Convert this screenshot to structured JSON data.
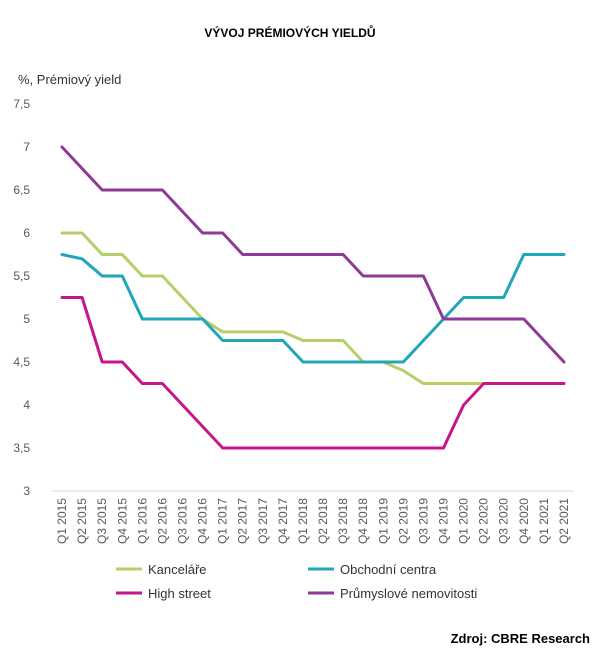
{
  "chart_data": {
    "type": "line",
    "title": "VÝVOJ PRÉMIOVÝCH YIELDŮ",
    "ylabel": "%, Prémiový yield",
    "ylim": [
      3,
      7.5
    ],
    "yticks": [
      "3",
      "3,5",
      "4",
      "4,5",
      "5",
      "5,5",
      "6",
      "6,5",
      "7",
      "7,5"
    ],
    "grid": false,
    "legend_position": "bottom",
    "source": "Zdroj: CBRE Research",
    "x": [
      "Q1 2015",
      "Q2 2015",
      "Q3 2015",
      "Q4 2015",
      "Q1 2016",
      "Q2 2016",
      "Q3 2016",
      "Q4 2016",
      "Q1 2017",
      "Q2 2017",
      "Q3 2017",
      "Q4 2017",
      "Q1 2018",
      "Q2 2018",
      "Q3 2018",
      "Q4 2018",
      "Q1 2019",
      "Q2 2019",
      "Q3 2019",
      "Q4 2019",
      "Q1 2020",
      "Q2 2020",
      "Q3 2020",
      "Q4 2020",
      "Q1 2021",
      "Q2 2021"
    ],
    "series": [
      {
        "name": "Kanceláře",
        "color": "#b5cf6b",
        "values": [
          6,
          6,
          5.75,
          5.75,
          5.5,
          5.5,
          5.25,
          5,
          4.85,
          4.85,
          4.85,
          4.85,
          4.75,
          4.75,
          4.75,
          4.5,
          4.5,
          4.4,
          4.25,
          4.25,
          4.25,
          4.25,
          4.25,
          4.25,
          4.25,
          4.25
        ]
      },
      {
        "name": "Obchodní centra",
        "color": "#1fa7b9",
        "values": [
          5.75,
          5.7,
          5.5,
          5.5,
          5,
          5,
          5,
          5,
          4.75,
          4.75,
          4.75,
          4.75,
          4.5,
          4.5,
          4.5,
          4.5,
          4.5,
          4.5,
          4.75,
          5,
          5.25,
          5.25,
          5.25,
          5.75,
          5.75,
          5.75
        ]
      },
      {
        "name": "High street",
        "color": "#c7168c",
        "values": [
          5.25,
          5.25,
          4.5,
          4.5,
          4.25,
          4.25,
          4,
          3.75,
          3.5,
          3.5,
          3.5,
          3.5,
          3.5,
          3.5,
          3.5,
          3.5,
          3.5,
          3.5,
          3.5,
          3.5,
          4,
          4.25,
          4.25,
          4.25,
          4.25,
          4.25
        ]
      },
      {
        "name": "Průmyslové nemovitosti",
        "color": "#8e3a96",
        "values": [
          7,
          6.75,
          6.5,
          6.5,
          6.5,
          6.5,
          6.25,
          6,
          6,
          5.75,
          5.75,
          5.75,
          5.75,
          5.75,
          5.75,
          5.5,
          5.5,
          5.5,
          5.5,
          5,
          5,
          5,
          5,
          5,
          4.75,
          4.5
        ]
      }
    ]
  }
}
